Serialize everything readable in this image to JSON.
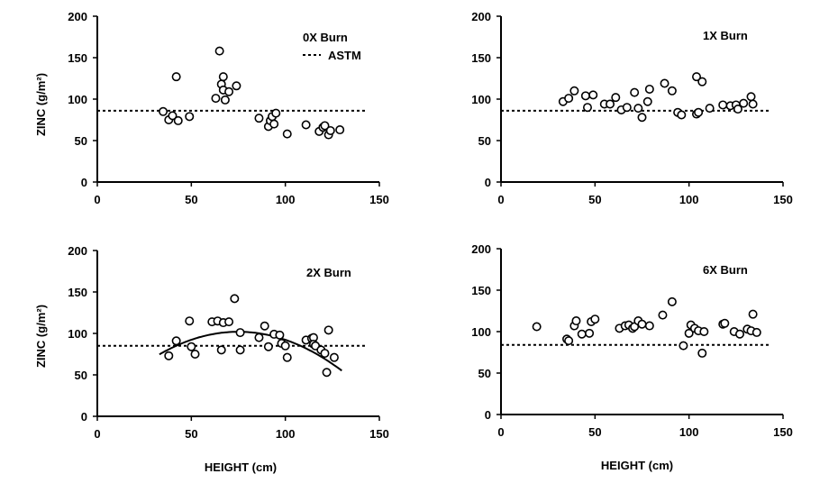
{
  "figure": {
    "xlabel": "HEIGHT (cm)",
    "ylabel": "ZINC (g/m²)",
    "ref_line_color": "#000000",
    "marker_color": "#000000"
  },
  "chart_data": [
    {
      "type": "scatter",
      "title": "0X Burn",
      "legend": {
        "line_label": "ASTM",
        "placement": "top-right"
      },
      "xlabel": "",
      "ylabel": "ZINC (g/m²)",
      "xlim": [
        0,
        150
      ],
      "ylim": [
        0,
        200
      ],
      "xticks": [
        0,
        50,
        100,
        150
      ],
      "yticks": [
        0,
        50,
        100,
        150,
        200
      ],
      "ref_line": 86,
      "curve": null,
      "points": [
        [
          35,
          85
        ],
        [
          38,
          75
        ],
        [
          40,
          80
        ],
        [
          42,
          127
        ],
        [
          43,
          74
        ],
        [
          49,
          79
        ],
        [
          63,
          101
        ],
        [
          65,
          158
        ],
        [
          66,
          118
        ],
        [
          67,
          127
        ],
        [
          67,
          111
        ],
        [
          68,
          99
        ],
        [
          70,
          109
        ],
        [
          74,
          116
        ],
        [
          86,
          77
        ],
        [
          91,
          67
        ],
        [
          92,
          74
        ],
        [
          93,
          79
        ],
        [
          94,
          70
        ],
        [
          95,
          83
        ],
        [
          101,
          58
        ],
        [
          111,
          69
        ],
        [
          118,
          61
        ],
        [
          120,
          66
        ],
        [
          121,
          68
        ],
        [
          123,
          57
        ],
        [
          124,
          62
        ],
        [
          129,
          63
        ]
      ]
    },
    {
      "type": "scatter",
      "title": "1X  Burn",
      "xlabel": "",
      "ylabel": "",
      "xlim": [
        0,
        150
      ],
      "ylim": [
        0,
        200
      ],
      "xticks": [
        0,
        50,
        100,
        150
      ],
      "yticks": [
        0,
        50,
        100,
        150,
        200
      ],
      "ref_line": 86,
      "curve": null,
      "points": [
        [
          33,
          97
        ],
        [
          36,
          101
        ],
        [
          39,
          110
        ],
        [
          45,
          104
        ],
        [
          46,
          90
        ],
        [
          49,
          105
        ],
        [
          55,
          94
        ],
        [
          58,
          94
        ],
        [
          61,
          102
        ],
        [
          64,
          87
        ],
        [
          67,
          90
        ],
        [
          71,
          108
        ],
        [
          73,
          89
        ],
        [
          75,
          78
        ],
        [
          78,
          97
        ],
        [
          79,
          112
        ],
        [
          87,
          119
        ],
        [
          91,
          110
        ],
        [
          94,
          84
        ],
        [
          96,
          81
        ],
        [
          104,
          127
        ],
        [
          104,
          82
        ],
        [
          105,
          84
        ],
        [
          107,
          121
        ],
        [
          111,
          89
        ],
        [
          118,
          93
        ],
        [
          122,
          92
        ],
        [
          125,
          93
        ],
        [
          126,
          88
        ],
        [
          129,
          95
        ],
        [
          133,
          103
        ],
        [
          134,
          94
        ]
      ]
    },
    {
      "type": "scatter",
      "title": "2X  Burn",
      "xlabel": "HEIGHT (cm)",
      "ylabel": "ZINC (g/m²)",
      "xlim": [
        0,
        150
      ],
      "ylim": [
        0,
        200
      ],
      "xticks": [
        0,
        50,
        100,
        150
      ],
      "yticks": [
        0,
        50,
        100,
        150,
        200
      ],
      "ref_line": 85,
      "curve": {
        "type": "quadratic",
        "x_from": 33,
        "x_to": 130,
        "vertex_x": 75,
        "vertex_y": 102,
        "a": -0.0155
      },
      "points": [
        [
          38,
          73
        ],
        [
          42,
          91
        ],
        [
          49,
          115
        ],
        [
          50,
          84
        ],
        [
          52,
          75
        ],
        [
          61,
          114
        ],
        [
          64,
          115
        ],
        [
          66,
          80
        ],
        [
          67,
          113
        ],
        [
          70,
          114
        ],
        [
          73,
          142
        ],
        [
          76,
          101
        ],
        [
          76,
          80
        ],
        [
          86,
          95
        ],
        [
          89,
          109
        ],
        [
          91,
          84
        ],
        [
          94,
          99
        ],
        [
          97,
          98
        ],
        [
          98,
          88
        ],
        [
          100,
          85
        ],
        [
          101,
          71
        ],
        [
          111,
          92
        ],
        [
          114,
          94
        ],
        [
          115,
          95
        ],
        [
          115,
          87
        ],
        [
          116,
          85
        ],
        [
          119,
          80
        ],
        [
          121,
          76
        ],
        [
          122,
          53
        ],
        [
          123,
          104
        ],
        [
          126,
          71
        ]
      ]
    },
    {
      "type": "scatter",
      "title": "6X  Burn",
      "xlabel": "HEIGHT (cm)",
      "ylabel": "",
      "xlim": [
        0,
        150
      ],
      "ylim": [
        0,
        200
      ],
      "xticks": [
        0,
        50,
        100,
        150
      ],
      "yticks": [
        0,
        50,
        100,
        150,
        200
      ],
      "ref_line": 84,
      "curve": null,
      "points": [
        [
          19,
          106
        ],
        [
          35,
          91
        ],
        [
          36,
          89
        ],
        [
          39,
          107
        ],
        [
          40,
          113
        ],
        [
          43,
          97
        ],
        [
          47,
          98
        ],
        [
          48,
          112
        ],
        [
          50,
          115
        ],
        [
          63,
          104
        ],
        [
          66,
          107
        ],
        [
          68,
          108
        ],
        [
          70,
          104
        ],
        [
          71,
          106
        ],
        [
          73,
          113
        ],
        [
          75,
          109
        ],
        [
          79,
          107
        ],
        [
          86,
          120
        ],
        [
          91,
          136
        ],
        [
          97,
          83
        ],
        [
          100,
          98
        ],
        [
          101,
          108
        ],
        [
          103,
          104
        ],
        [
          105,
          101
        ],
        [
          107,
          74
        ],
        [
          108,
          100
        ],
        [
          118,
          109
        ],
        [
          119,
          110
        ],
        [
          124,
          100
        ],
        [
          127,
          97
        ],
        [
          131,
          103
        ],
        [
          133,
          101
        ],
        [
          134,
          121
        ],
        [
          136,
          99
        ]
      ]
    }
  ]
}
